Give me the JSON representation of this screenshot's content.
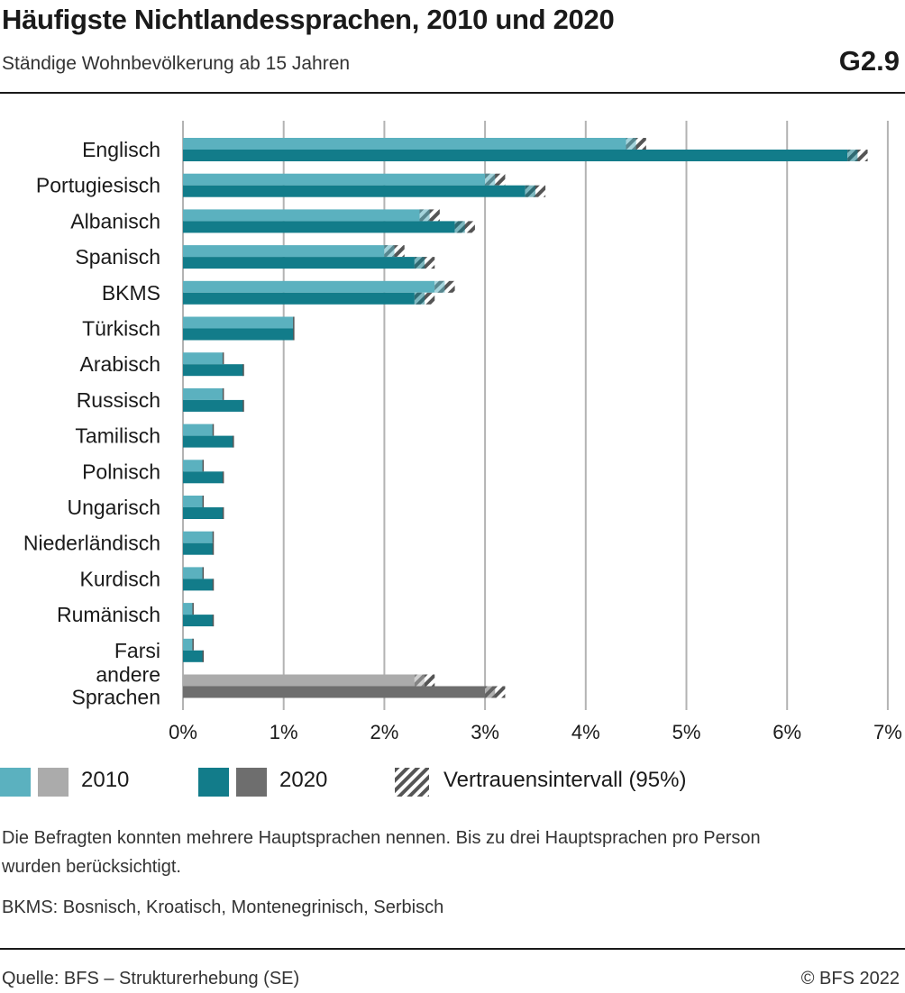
{
  "header": {
    "title": "Häufigste Nichtlandessprachen, 2010 und 2020",
    "subtitle": "Ständige Wohnbevölkerung ab 15 Jahren",
    "figure_number": "G2.9"
  },
  "colors": {
    "teal_2010": "#5bb1bf",
    "teal_2020": "#127c8a",
    "grey_2010": "#ababab",
    "grey_2020": "#6e6e6e",
    "grid": "#b3b3b3",
    "hatch": "#555555"
  },
  "chart_data": {
    "type": "bar",
    "orientation": "horizontal",
    "categories": [
      "Englisch",
      "Portugiesisch",
      "Albanisch",
      "Spanisch",
      "BKMS",
      "Türkisch",
      "Arabisch",
      "Russisch",
      "Tamilisch",
      "Polnisch",
      "Ungarisch",
      "Niederländisch",
      "Kurdisch",
      "Rumänisch",
      "Farsi",
      "andere Sprachen"
    ],
    "series": [
      {
        "name": "2010",
        "values": [
          4.5,
          3.1,
          2.45,
          2.1,
          2.6,
          1.1,
          0.4,
          0.4,
          0.3,
          0.2,
          0.2,
          0.3,
          0.2,
          0.1,
          0.1,
          2.4
        ],
        "ci_half_width": [
          0.1,
          0.1,
          0.1,
          0.1,
          0.1,
          0.0,
          0.0,
          0.0,
          0.0,
          0.0,
          0.0,
          0.0,
          0.0,
          0.0,
          0.0,
          0.1
        ]
      },
      {
        "name": "2020",
        "values": [
          6.7,
          3.5,
          2.8,
          2.4,
          2.4,
          1.1,
          0.6,
          0.6,
          0.5,
          0.4,
          0.4,
          0.3,
          0.3,
          0.3,
          0.2,
          3.1
        ],
        "ci_half_width": [
          0.1,
          0.1,
          0.1,
          0.1,
          0.1,
          0.0,
          0.0,
          0.0,
          0.0,
          0.0,
          0.0,
          0.0,
          0.0,
          0.0,
          0.0,
          0.1
        ]
      }
    ],
    "xlim": [
      0,
      7
    ],
    "ticks": [
      "0%",
      "1%",
      "2%",
      "3%",
      "4%",
      "5%",
      "6%",
      "7%"
    ],
    "grid": true,
    "legend_position": "bottom"
  },
  "legend": {
    "label_2010": "2010",
    "label_2020": "2020",
    "label_ci": "Vertrauensintervall (95%)"
  },
  "notes": {
    "line1": "Die Befragten konnten mehrere Hauptsprachen nennen. Bis zu drei Hauptsprachen pro Person",
    "line2": "wurden berücksichtigt.",
    "line3": "BKMS: Bosnisch, Kroatisch, Montenegrinisch, Serbisch"
  },
  "footer": {
    "source": "Quelle: BFS – Strukturerhebung (SE)",
    "copyright": "© BFS 2022"
  }
}
